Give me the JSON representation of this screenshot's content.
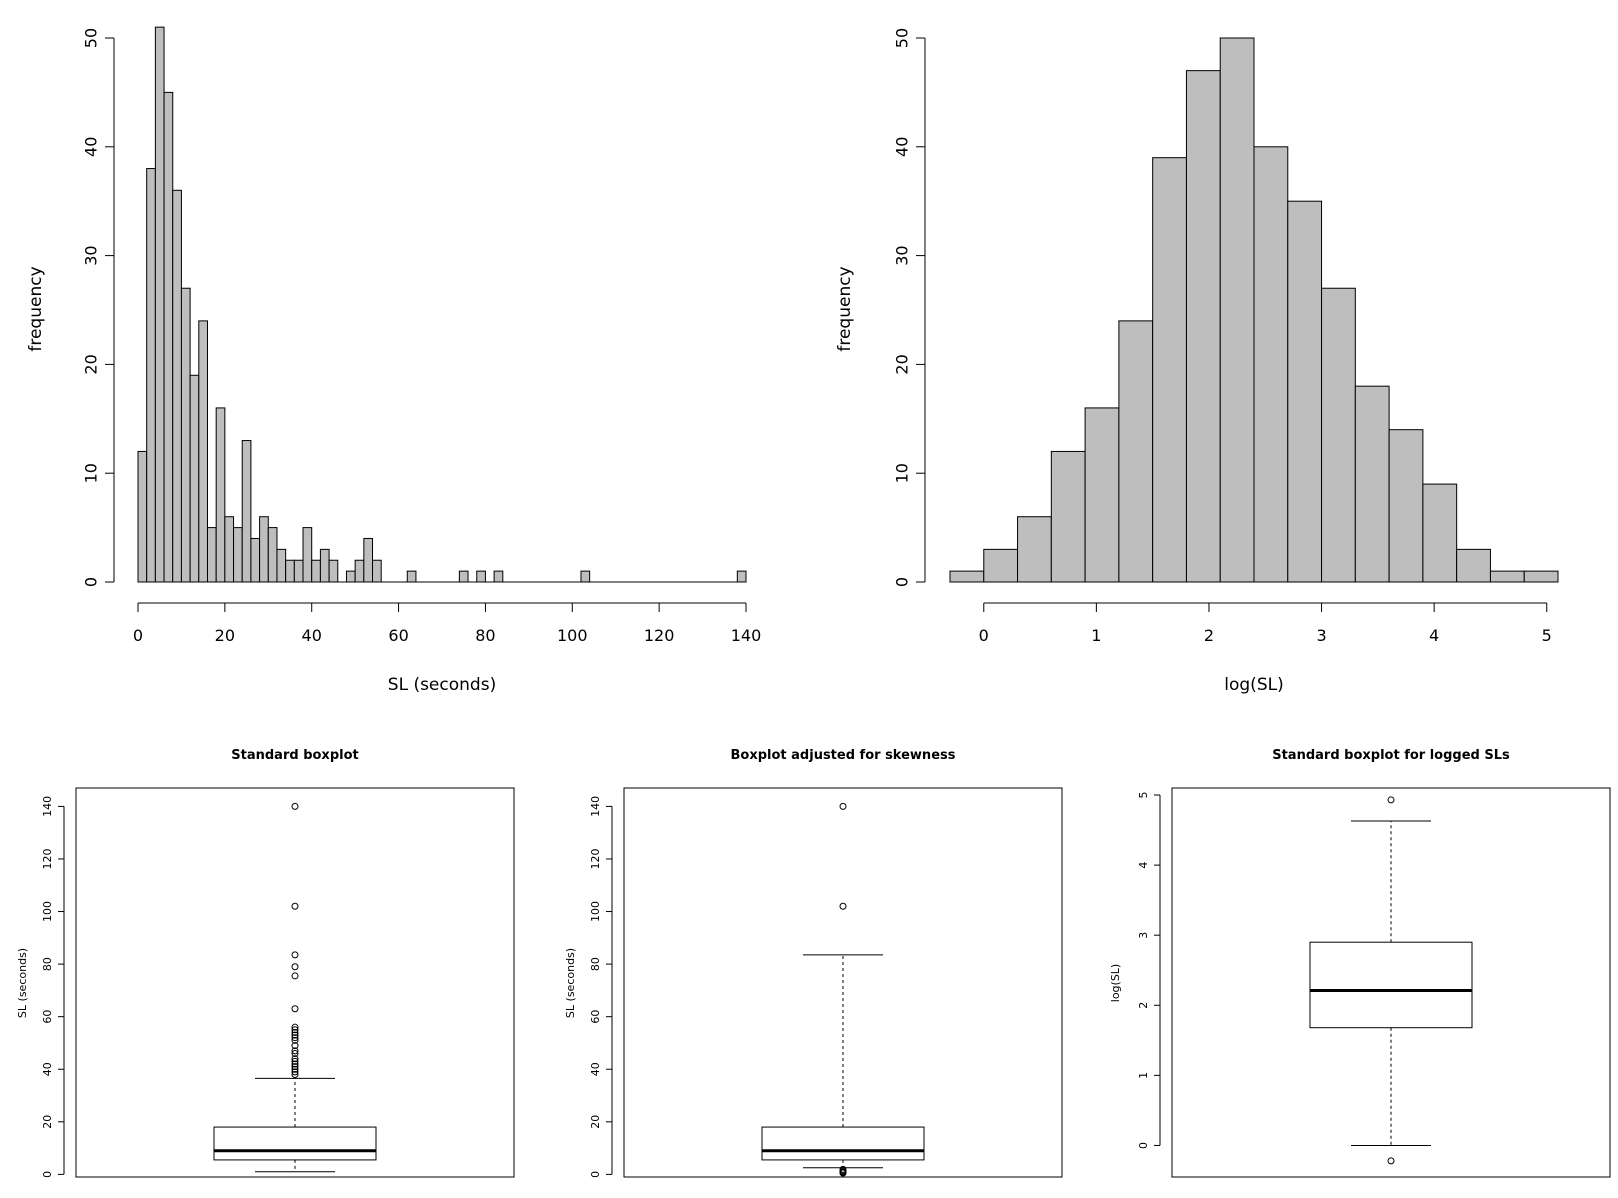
{
  "chart_data": [
    {
      "type": "histogram",
      "xlabel": "SL (seconds)",
      "ylabel": "frequency",
      "xlim": [
        0,
        140
      ],
      "ylim": [
        0,
        50
      ],
      "x_ticks": [
        "0",
        "20",
        "40",
        "60",
        "80",
        "100",
        "120",
        "140"
      ],
      "y_ticks": [
        "0",
        "10",
        "20",
        "30",
        "40",
        "50"
      ],
      "bin_width": 2,
      "bins": [
        {
          "x": 0,
          "count": 12
        },
        {
          "x": 2,
          "count": 38
        },
        {
          "x": 4,
          "count": 51
        },
        {
          "x": 6,
          "count": 45
        },
        {
          "x": 8,
          "count": 36
        },
        {
          "x": 10,
          "count": 27
        },
        {
          "x": 12,
          "count": 19
        },
        {
          "x": 14,
          "count": 24
        },
        {
          "x": 16,
          "count": 5
        },
        {
          "x": 18,
          "count": 16
        },
        {
          "x": 20,
          "count": 6
        },
        {
          "x": 22,
          "count": 5
        },
        {
          "x": 24,
          "count": 13
        },
        {
          "x": 26,
          "count": 4
        },
        {
          "x": 28,
          "count": 6
        },
        {
          "x": 30,
          "count": 5
        },
        {
          "x": 32,
          "count": 3
        },
        {
          "x": 34,
          "count": 2
        },
        {
          "x": 36,
          "count": 2
        },
        {
          "x": 38,
          "count": 5
        },
        {
          "x": 40,
          "count": 2
        },
        {
          "x": 42,
          "count": 3
        },
        {
          "x": 44,
          "count": 2
        },
        {
          "x": 48,
          "count": 1
        },
        {
          "x": 50,
          "count": 2
        },
        {
          "x": 52,
          "count": 4
        },
        {
          "x": 54,
          "count": 2
        },
        {
          "x": 62,
          "count": 1
        },
        {
          "x": 74,
          "count": 1
        },
        {
          "x": 78,
          "count": 1
        },
        {
          "x": 82,
          "count": 1
        },
        {
          "x": 102,
          "count": 1
        },
        {
          "x": 138,
          "count": 1
        }
      ]
    },
    {
      "type": "histogram",
      "xlabel": "log(SL)",
      "ylabel": "frequency",
      "xlim": [
        -0.3,
        5.1
      ],
      "ylim": [
        0,
        50
      ],
      "x_ticks": [
        "0",
        "1",
        "2",
        "3",
        "4",
        "5"
      ],
      "y_ticks": [
        "0",
        "10",
        "20",
        "30",
        "40",
        "50"
      ],
      "bin_width": 0.3,
      "bins": [
        {
          "x": -0.3,
          "count": 1
        },
        {
          "x": 0.0,
          "count": 3
        },
        {
          "x": 0.3,
          "count": 6
        },
        {
          "x": 0.6,
          "count": 12
        },
        {
          "x": 0.9,
          "count": 16
        },
        {
          "x": 1.2,
          "count": 24
        },
        {
          "x": 1.5,
          "count": 39
        },
        {
          "x": 1.8,
          "count": 47
        },
        {
          "x": 2.1,
          "count": 50
        },
        {
          "x": 2.4,
          "count": 40
        },
        {
          "x": 2.7,
          "count": 35
        },
        {
          "x": 3.0,
          "count": 27
        },
        {
          "x": 3.3,
          "count": 18
        },
        {
          "x": 3.6,
          "count": 14
        },
        {
          "x": 3.9,
          "count": 9
        },
        {
          "x": 4.2,
          "count": 3
        },
        {
          "x": 4.5,
          "count": 1
        },
        {
          "x": 4.8,
          "count": 1
        }
      ]
    },
    {
      "type": "boxplot",
      "title": "Standard boxplot",
      "ylabel": "SL (seconds)",
      "ylim": [
        -1,
        147
      ],
      "y_ticks": [
        "0",
        "20",
        "40",
        "60",
        "80",
        "100",
        "120",
        "140"
      ],
      "lower_whisker": 1,
      "q1": 5.5,
      "median": 9,
      "q3": 18,
      "upper_whisker": 36.5,
      "outliers": [
        38,
        39,
        40,
        41,
        42,
        43,
        44,
        46,
        47,
        49,
        51,
        52,
        53,
        54,
        55,
        56,
        63,
        75.5,
        79,
        83.5,
        102,
        140
      ]
    },
    {
      "type": "boxplot",
      "title": "Boxplot adjusted for skewness",
      "ylabel": "SL (seconds)",
      "ylim": [
        -1,
        147
      ],
      "y_ticks": [
        "0",
        "20",
        "40",
        "60",
        "80",
        "100",
        "120",
        "140"
      ],
      "lower_whisker": 2.5,
      "q1": 5.5,
      "median": 9,
      "q3": 18,
      "upper_whisker": 83.5,
      "outliers": [
        0.5,
        0.8,
        1.1,
        1.5,
        1.9,
        102,
        140
      ]
    },
    {
      "type": "boxplot",
      "title": "Standard boxplot for logged SLs",
      "ylabel": "log(SL)",
      "ylim": [
        -0.45,
        5.1
      ],
      "y_ticks": [
        "0",
        "1",
        "2",
        "3",
        "4",
        "5"
      ],
      "lower_whisker": 0,
      "q1": 1.68,
      "median": 2.21,
      "q3": 2.9,
      "upper_whisker": 4.63,
      "outliers": [
        -0.22,
        4.93
      ]
    }
  ]
}
